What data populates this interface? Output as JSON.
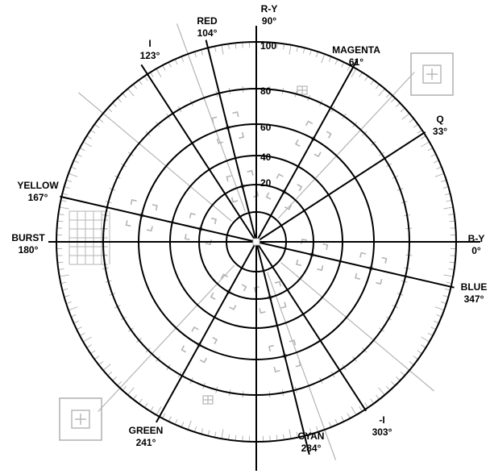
{
  "diagram": {
    "ring_labels": [
      "20",
      "40",
      "60",
      "80",
      "100"
    ],
    "axes": [
      {
        "id": "b-y",
        "name": "B-Y",
        "angle_label": "0°",
        "angle": 0
      },
      {
        "id": "q",
        "name": "Q",
        "angle_label": "33°",
        "angle": 33
      },
      {
        "id": "magenta",
        "name": "MAGENTA",
        "angle_label": "61°",
        "angle": 61
      },
      {
        "id": "r-y",
        "name": "R-Y",
        "angle_label": "90°",
        "angle": 90
      },
      {
        "id": "red",
        "name": "RED",
        "angle_label": "104°",
        "angle": 104
      },
      {
        "id": "i",
        "name": "I",
        "angle_label": "123°",
        "angle": 123
      },
      {
        "id": "yellow",
        "name": "YELLOW",
        "angle_label": "167°",
        "angle": 167
      },
      {
        "id": "burst",
        "name": "BURST",
        "angle_label": "180°",
        "angle": 180
      },
      {
        "id": "green",
        "name": "GREEN",
        "angle_label": "241°",
        "angle": 241
      },
      {
        "id": "cyan",
        "name": "CYAN",
        "angle_label": "284°",
        "angle": 284
      },
      {
        "id": "minus-i",
        "name": "-I",
        "angle_label": "303°",
        "angle": 303
      },
      {
        "id": "blue",
        "name": "BLUE",
        "angle_label": "347°",
        "angle": 347
      }
    ],
    "colors": {
      "line": "#000000",
      "graticule": "#b4b4b4",
      "background": "#ffffff"
    }
  }
}
